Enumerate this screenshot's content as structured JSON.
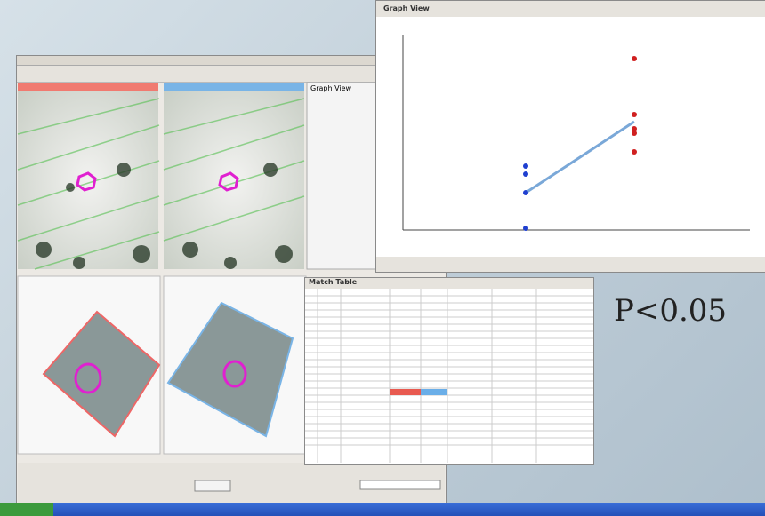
{
  "main_window": {
    "panel_title": "Graph View",
    "tab_label": "Match Table"
  },
  "graph_window": {
    "title": "Graph View"
  },
  "annotation": "P<0.05"
}
